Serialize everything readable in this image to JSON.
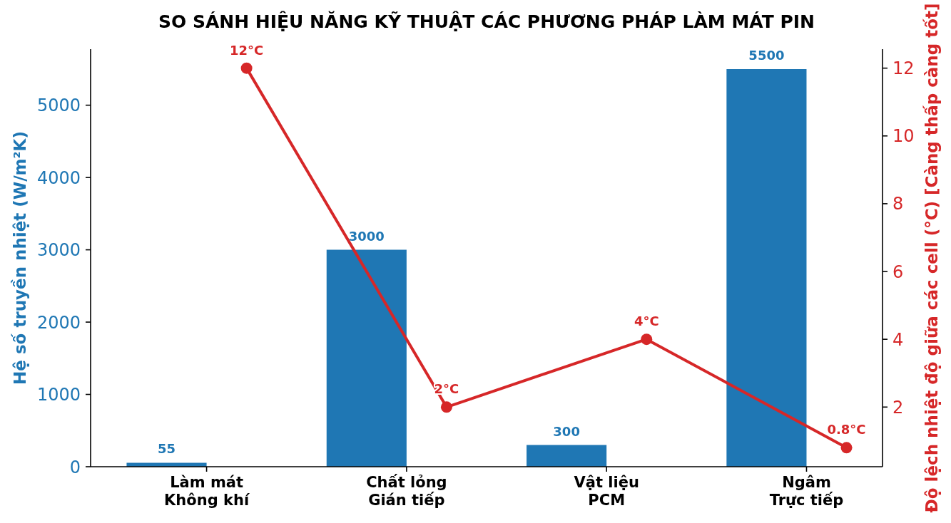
{
  "chart_data": {
    "type": "bar",
    "title": "SO SÁNH HIỆU NĂNG KỸ THUẬT CÁC PHƯƠNG PHÁP LÀM MÁT PIN",
    "ylabel": "Hệ số truyền nhiệt (W/m²K)",
    "y2label": "Độ lệch nhiệt độ giữa các cell (°C) [Càng thấp càng tốt]",
    "categories": [
      "Làm mát\nKhông khí",
      "Chất lỏng\nGián tiếp",
      "Vật liệu\nPCM",
      "Ngâm\nTrực tiếp"
    ],
    "series": [
      {
        "type": "bar",
        "color": "#1f77b4",
        "values": [
          55,
          3000,
          300,
          5500
        ],
        "value_labels": [
          "55",
          "3000",
          "300",
          "5500"
        ]
      },
      {
        "type": "line",
        "axis": "y2",
        "color": "#d62728",
        "marker": "circle",
        "values": [
          12,
          2,
          4,
          0.8
        ],
        "value_labels": [
          "12°C",
          "2°C",
          "4°C",
          "0.8°C"
        ]
      }
    ],
    "ylim": [
      0,
      5775
    ],
    "yticks": [
      0,
      1000,
      2000,
      3000,
      4000,
      5000
    ],
    "y2lim": [
      0.24,
      12.56
    ],
    "y2ticks": [
      2,
      4,
      6,
      8,
      10,
      12
    ]
  }
}
